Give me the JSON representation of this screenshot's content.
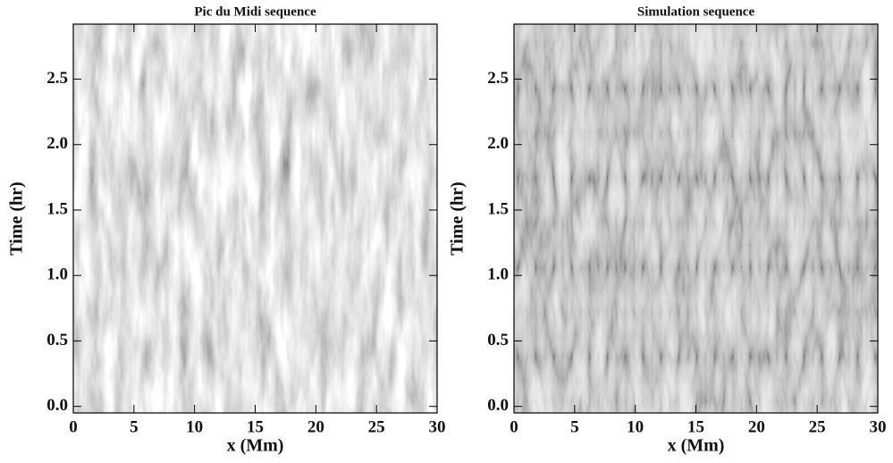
{
  "chart_data": [
    {
      "type": "image",
      "title": "Pic du Midi sequence",
      "xlabel": "x (Mm)",
      "ylabel": "Time (hr)",
      "xlim": [
        0,
        30
      ],
      "ylim": [
        -0.05,
        2.92
      ],
      "xticks": [
        0,
        5,
        10,
        15,
        20,
        25,
        30
      ],
      "yticks": [
        {
          "value": 0,
          "label": "0.0"
        },
        0.5,
        {
          "value": 1,
          "label": "1.0"
        },
        1.5,
        {
          "value": 2,
          "label": "2.0"
        },
        2.5
      ]
    },
    {
      "type": "image",
      "title": "Simulation sequence",
      "xlabel": "x (Mm)",
      "ylabel": "Time (hr)",
      "xlim": [
        0,
        30
      ],
      "ylim": [
        -0.05,
        2.92
      ],
      "xticks": [
        0,
        5,
        10,
        15,
        20,
        25,
        30
      ],
      "yticks": [
        {
          "value": 0,
          "label": "0.0"
        },
        0.5,
        {
          "value": 1,
          "label": "1.0"
        },
        1.5,
        {
          "value": 2,
          "label": "2.0"
        },
        2.5
      ]
    }
  ]
}
